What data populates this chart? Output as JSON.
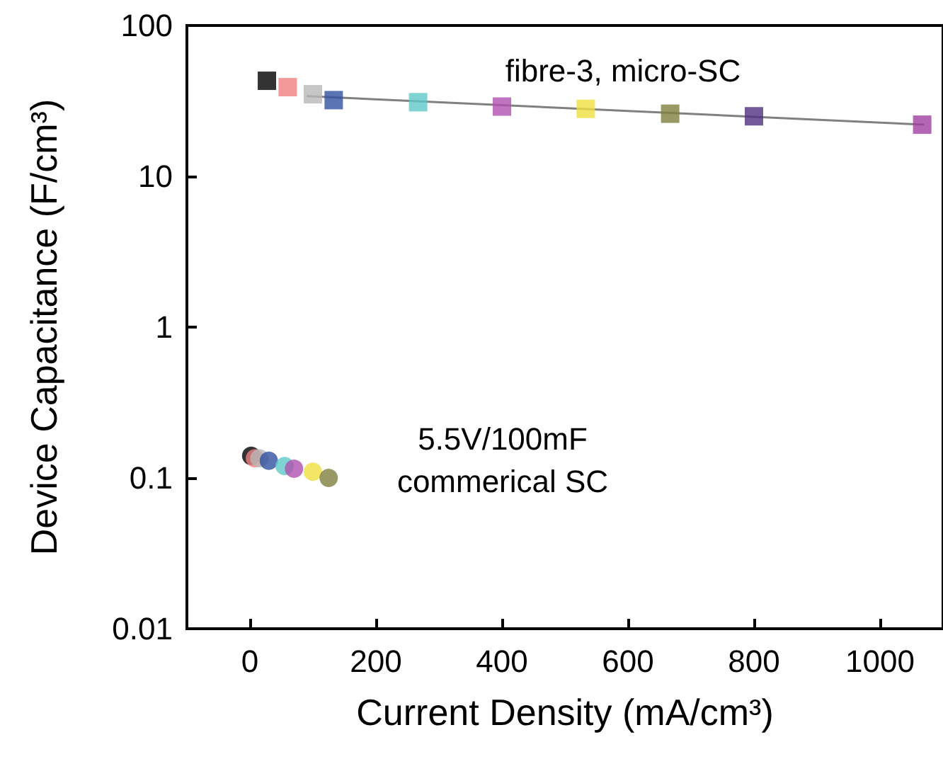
{
  "chart_data": {
    "type": "scatter",
    "xlabel": "Current Density (mA/cm³)",
    "ylabel": "Device Capacitance (F/cm³)",
    "xlim": [
      -100,
      1100
    ],
    "xticks": [
      0,
      200,
      400,
      600,
      800,
      1000
    ],
    "ylim": [
      0.01,
      100
    ],
    "yticks": [
      0.01,
      0.1,
      1,
      10,
      100
    ],
    "log": "y",
    "grid": false,
    "series": [
      {
        "type": "line",
        "x": [
          90,
          1070
        ],
        "values": [
          34,
          22
        ],
        "color": "#808080",
        "marker": "none",
        "line_style": "solid"
      },
      {
        "x": [
          27,
          60,
          100,
          133,
          267,
          400,
          533,
          667,
          800,
          1067
        ],
        "values": [
          43,
          39,
          35,
          32,
          31,
          29,
          28,
          26,
          25,
          22
        ],
        "marker": "square",
        "colors": [
          "#000000",
          "#f08080",
          "#b8b8b8",
          "#3050a0",
          "#60c8c8",
          "#b050b0",
          "#f0e040",
          "#808040",
          "#503080",
          "#a040a0"
        ]
      },
      {
        "x": [
          2,
          8,
          15,
          30,
          55,
          70,
          100,
          125
        ],
        "values": [
          0.14,
          0.135,
          0.135,
          0.13,
          0.12,
          0.115,
          0.11,
          0.1
        ],
        "marker": "circle",
        "colors": [
          "#000000",
          "#f08080",
          "#b8b8b8",
          "#3050a0",
          "#60c8c8",
          "#b050b0",
          "#f0e040",
          "#808040"
        ]
      }
    ],
    "annotations": [
      "fibre-3, micro-SC",
      "5.5V/100mF\ncommerical SC"
    ]
  }
}
